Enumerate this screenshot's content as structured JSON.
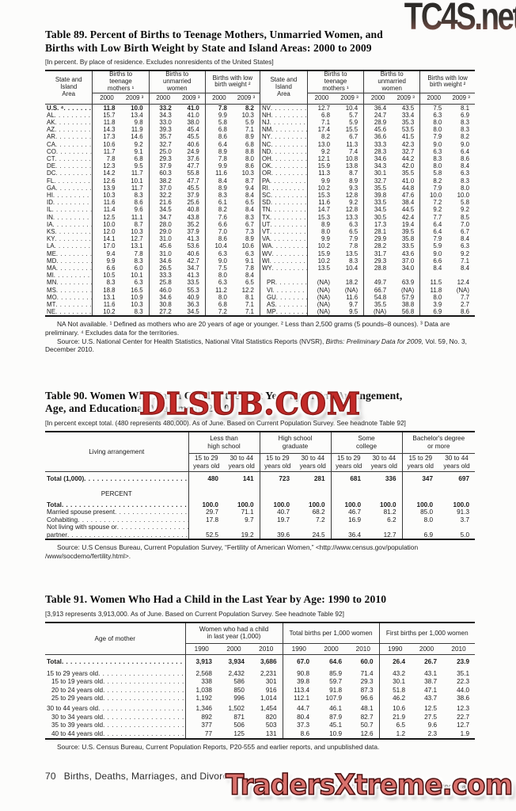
{
  "watermarks": {
    "top": "TC4S.net",
    "middle": "DLSUB.COM",
    "bottom": "TradersXtreme.com",
    "middle_color": "#c32a28",
    "bottom_color": "#d9716c"
  },
  "table89": {
    "title": "Table 89. Percent of Births to Teenage Mothers, Unmarried Women, and\nBirths with Low Birth Weight by State and Island Areas: 2000 to 2009",
    "headnote": "[In percent. By place of residence. Excludes nonresidents of the United States]",
    "header": {
      "stub": "State and\nIsland\nArea",
      "groups": [
        "Births to\nteenage\nmothers ¹",
        "Births to\nunmarried\nwomen",
        "Births with low\nbirth weight ²"
      ],
      "year1": "2000",
      "year2": "2009 ³"
    },
    "left_rows": [
      {
        "area": "U.S. ⁴",
        "bold": true,
        "values": [
          "11.8",
          "10.0",
          "33.2",
          "41.0",
          "7.8",
          "8.2"
        ]
      },
      {
        "area": "AL",
        "values": [
          "15.7",
          "13.4",
          "34.3",
          "41.0",
          "9.9",
          "10.3"
        ]
      },
      {
        "area": "AK",
        "values": [
          "11.8",
          "9.8",
          "33.0",
          "38.0",
          "5.8",
          "5.9"
        ]
      },
      {
        "area": "AZ",
        "values": [
          "14.3",
          "11.9",
          "39.3",
          "45.4",
          "6.8",
          "7.1"
        ]
      },
      {
        "area": "AR",
        "values": [
          "17.3",
          "14.6",
          "35.7",
          "45.5",
          "8.6",
          "8.9"
        ]
      },
      {
        "area": "CA",
        "values": [
          "10.6",
          "9.2",
          "32.7",
          "40.6",
          "6.4",
          "6.8"
        ]
      },
      {
        "area": "CO",
        "values": [
          "11.7",
          "9.1",
          "25.0",
          "24.9",
          "8.9",
          "8.8"
        ]
      },
      {
        "area": "CT",
        "values": [
          "7.8",
          "6.8",
          "29.3",
          "37.6",
          "7.8",
          "8.0"
        ]
      },
      {
        "area": "DE",
        "values": [
          "12.3",
          "9.5",
          "37.9",
          "47.7",
          "9.9",
          "8.6"
        ]
      },
      {
        "area": "DC",
        "values": [
          "14.2",
          "11.7",
          "60.3",
          "55.8",
          "11.6",
          "10.3"
        ]
      },
      {
        "area": "FL",
        "values": [
          "12.6",
          "10.1",
          "38.2",
          "47.7",
          "8.4",
          "8.7"
        ]
      },
      {
        "area": "GA",
        "values": [
          "13.9",
          "11.7",
          "37.0",
          "45.5",
          "8.9",
          "9.4"
        ]
      },
      {
        "area": "HI",
        "values": [
          "10.3",
          "8.3",
          "32.2",
          "37.9",
          "8.3",
          "8.4"
        ]
      },
      {
        "area": "ID",
        "values": [
          "11.6",
          "8.6",
          "21.6",
          "25.6",
          "6.1",
          "6.5"
        ]
      },
      {
        "area": "IL",
        "values": [
          "11.4",
          "9.6",
          "34.5",
          "40.8",
          "8.2",
          "8.4"
        ]
      },
      {
        "area": "IN",
        "values": [
          "12.5",
          "11.1",
          "34.7",
          "43.8",
          "7.6",
          "8.3"
        ]
      },
      {
        "area": "IA",
        "values": [
          "10.0",
          "8.7",
          "28.0",
          "35.2",
          "6.6",
          "6.7"
        ]
      },
      {
        "area": "KS",
        "values": [
          "12.0",
          "10.3",
          "29.0",
          "37.9",
          "7.0",
          "7.3"
        ]
      },
      {
        "area": "KY",
        "values": [
          "14.1",
          "12.7",
          "31.0",
          "41.3",
          "8.6",
          "8.9"
        ]
      },
      {
        "area": "LA",
        "values": [
          "17.0",
          "13.1",
          "45.6",
          "53.6",
          "10.4",
          "10.6"
        ]
      },
      {
        "area": "ME",
        "values": [
          "9.4",
          "7.8",
          "31.0",
          "40.6",
          "6.3",
          "6.3"
        ]
      },
      {
        "area": "MD",
        "values": [
          "9.9",
          "8.3",
          "34.6",
          "42.7",
          "9.0",
          "9.1"
        ]
      },
      {
        "area": "MA",
        "values": [
          "6.6",
          "6.0",
          "26.5",
          "34.7",
          "7.5",
          "7.8"
        ]
      },
      {
        "area": "MI",
        "values": [
          "10.5",
          "10.1",
          "33.3",
          "41.3",
          "8.0",
          "8.4"
        ]
      },
      {
        "area": "MN",
        "values": [
          "8.3",
          "6.3",
          "25.8",
          "33.5",
          "6.3",
          "6.5"
        ]
      },
      {
        "area": "MS",
        "values": [
          "18.8",
          "16.5",
          "46.0",
          "55.3",
          "11.2",
          "12.2"
        ]
      },
      {
        "area": "MO",
        "values": [
          "13.1",
          "10.9",
          "34.6",
          "40.9",
          "8.0",
          "8.1"
        ]
      },
      {
        "area": "MT",
        "values": [
          "11.6",
          "10.3",
          "30.8",
          "36.3",
          "6.8",
          "7.1"
        ]
      },
      {
        "area": "NE",
        "values": [
          "10.2",
          "8.3",
          "27.2",
          "34.5",
          "7.2",
          "7.1"
        ]
      }
    ],
    "right_rows": [
      {
        "area": "NV",
        "values": [
          "12.7",
          "10.4",
          "36.4",
          "43.5",
          "7.5",
          "8.1"
        ]
      },
      {
        "area": "NH",
        "values": [
          "6.8",
          "5.7",
          "24.7",
          "33.4",
          "6.3",
          "6.9"
        ]
      },
      {
        "area": "NJ",
        "values": [
          "7.1",
          "5.9",
          "28.9",
          "35.3",
          "8.0",
          "8.3"
        ]
      },
      {
        "area": "NM",
        "values": [
          "17.4",
          "15.5",
          "45.6",
          "53.5",
          "8.0",
          "8.3"
        ]
      },
      {
        "area": "NY",
        "values": [
          "8.2",
          "6.7",
          "36.6",
          "41.5",
          "7.9",
          "8.2"
        ]
      },
      {
        "area": "NC",
        "values": [
          "13.0",
          "11.3",
          "33.3",
          "42.3",
          "9.0",
          "9.0"
        ]
      },
      {
        "area": "ND",
        "values": [
          "9.2",
          "7.4",
          "28.3",
          "32.7",
          "6.3",
          "6.4"
        ]
      },
      {
        "area": "OH",
        "values": [
          "12.1",
          "10.8",
          "34.6",
          "44.2",
          "8.3",
          "8.6"
        ]
      },
      {
        "area": "OK",
        "values": [
          "15.9",
          "13.8",
          "34.3",
          "42.0",
          "8.0",
          "8.4"
        ]
      },
      {
        "area": "OR",
        "values": [
          "11.3",
          "8.7",
          "30.1",
          "35.5",
          "5.8",
          "6.3"
        ]
      },
      {
        "area": "PA",
        "values": [
          "9.9",
          "8.9",
          "32.7",
          "41.0",
          "8.2",
          "8.3"
        ]
      },
      {
        "area": "RI",
        "values": [
          "10.2",
          "9.3",
          "35.5",
          "44.8",
          "7.9",
          "8.0"
        ]
      },
      {
        "area": "SC",
        "values": [
          "15.3",
          "12.8",
          "39.8",
          "47.6",
          "10.0",
          "10.0"
        ]
      },
      {
        "area": "SD",
        "values": [
          "11.6",
          "9.2",
          "33.5",
          "38.4",
          "7.2",
          "5.8"
        ]
      },
      {
        "area": "TN",
        "values": [
          "14.7",
          "12.8",
          "34.5",
          "44.5",
          "9.2",
          "9.2"
        ]
      },
      {
        "area": "TX",
        "values": [
          "15.3",
          "13.3",
          "30.5",
          "42.4",
          "7.7",
          "8.5"
        ]
      },
      {
        "area": "UT",
        "values": [
          "8.9",
          "6.3",
          "17.3",
          "19.4",
          "6.4",
          "7.0"
        ]
      },
      {
        "area": "VT",
        "values": [
          "8.0",
          "6.5",
          "28.1",
          "39.5",
          "6.4",
          "6.7"
        ]
      },
      {
        "area": "VA",
        "values": [
          "9.9",
          "7.9",
          "29.9",
          "35.8",
          "7.9",
          "8.4"
        ]
      },
      {
        "area": "WA",
        "values": [
          "10.2",
          "7.8",
          "28.2",
          "33.5",
          "5.9",
          "6.3"
        ]
      },
      {
        "area": "WV",
        "values": [
          "15.9",
          "13.5",
          "31.7",
          "43.6",
          "9.0",
          "9.2"
        ]
      },
      {
        "area": "WI",
        "values": [
          "10.2",
          "8.3",
          "29.3",
          "37.0",
          "6.6",
          "7.1"
        ]
      },
      {
        "area": "WY",
        "values": [
          "13.5",
          "10.4",
          "28.8",
          "34.0",
          "8.4",
          "8.4"
        ]
      },
      null,
      {
        "area": "PR",
        "indent": true,
        "values": [
          "(NA)",
          "18.2",
          "49.7",
          "63.9",
          "11.5",
          "12.4"
        ]
      },
      {
        "area": "VI",
        "indent": true,
        "values": [
          "(NA)",
          "(NA)",
          "66.7",
          "(NA)",
          "11.8",
          "(NA)"
        ]
      },
      {
        "area": "GU",
        "indent": true,
        "values": [
          "(NA)",
          "11.6",
          "54.8",
          "57.9",
          "8.0",
          "7.7"
        ]
      },
      {
        "area": "AS",
        "indent": true,
        "values": [
          "(NA)",
          "9.7",
          "35.5",
          "38.8",
          "3.9",
          "2.7"
        ]
      },
      {
        "area": "MP",
        "indent": true,
        "values": [
          "(NA)",
          "9.5",
          "(NA)",
          "56.8",
          "6.9",
          "8.6"
        ]
      }
    ],
    "footnote": "NA Not available. ¹ Defined as mothers who are 20 years of age or younger. ² Less than 2,500 grams (5 pounds–8 ounces). ³ Data are preliminary. ⁴ Excludes data for the territories.",
    "source_prefix": "Source: U.S. National Center for Health Statistics, National Vital Statistics Reports (NVSR), ",
    "source_italic": "Births: Preliminary Data for 2009,",
    "source_suffix": " Vol. 59, No. 3, December 2010."
  },
  "table90": {
    "title": "Table 90. Women Who Had a Child in the Last Year by Living Arrangement,\nAge, and Educational Attainment: 2010",
    "headnote": "[In percent except total. (480 represents 480,000). As of June. Based on Current Population Survey. See headnote Table 92]",
    "header": {
      "stub": "Living arrangement",
      "groups": [
        "Less than\nhigh school",
        "High school\ngraduate",
        "Some\ncollege",
        "Bachelor's degree\nor more"
      ],
      "sub1": "15 to 29\nyears old",
      "sub2": "30 to 44\nyears old"
    },
    "rows": [
      {
        "label": "Total (1,000)",
        "bold": true,
        "first": true,
        "values": [
          "480",
          "141",
          "723",
          "281",
          "681",
          "336",
          "347",
          "697"
        ]
      },
      {
        "type": "spacer"
      },
      {
        "type": "section",
        "label": "PERCENT"
      },
      {
        "type": "spacer2"
      },
      {
        "label": "Total",
        "bold": true,
        "values": [
          "100.0",
          "100.0",
          "100.0",
          "100.0",
          "100.0",
          "100.0",
          "100.0",
          "100.0"
        ]
      },
      {
        "label": "Married spouse present",
        "values": [
          "29.7",
          "71.1",
          "40.7",
          "68.2",
          "46.7",
          "81.2",
          "85.0",
          "91.3"
        ]
      },
      {
        "label": "Cohabiting",
        "values": [
          "17.8",
          "9.7",
          "19.7",
          "7.2",
          "16.9",
          "6.2",
          "8.0",
          "3.7"
        ]
      },
      {
        "label": "Not living with spouse or",
        "label2": "partner",
        "values": [
          "52.5",
          "19.2",
          "39.6",
          "24.5",
          "36.4",
          "12.7",
          "6.9",
          "5.0"
        ]
      }
    ],
    "source": "Source: U.S Census Bureau, Current Population Survey, “Fertility of American Women,” <http://www.census.gov/population /www/socdemo/fertility.html>."
  },
  "table91": {
    "title": "Table 91. Women Who Had a Child in the Last Year by Age: 1990 to 2010",
    "headnote": "[3,913 represents 3,913,000. As of June. Based on Current Population Survey. See headnote Table 92]",
    "header": {
      "stub": "Age of mother",
      "groups": [
        "Women who had a child\nin last year (1,000)",
        "Total births per 1,000 women",
        "First births per 1,000 women"
      ],
      "years": [
        "1990",
        "2000",
        "2010"
      ]
    },
    "rows": [
      {
        "label": "Total",
        "bold": true,
        "first": true,
        "values": [
          "3,913",
          "3,934",
          "3,686",
          "67.0",
          "64.6",
          "60.0",
          "26.4",
          "26.7",
          "23.9"
        ]
      },
      {
        "type": "gap"
      },
      {
        "label": "15 to 29 years old",
        "values": [
          "2,568",
          "2,432",
          "2,231",
          "90.8",
          "85.9",
          "71.4",
          "43.2",
          "43.1",
          "35.1"
        ]
      },
      {
        "label": "15 to 19 years old",
        "indent": true,
        "values": [
          "338",
          "586",
          "301",
          "39.8",
          "59.7",
          "29.3",
          "30.1",
          "38.7",
          "22.3"
        ]
      },
      {
        "label": "20 to 24 years old",
        "indent": true,
        "values": [
          "1,038",
          "850",
          "916",
          "113.4",
          "91.8",
          "87.3",
          "51.8",
          "47.1",
          "44.0"
        ]
      },
      {
        "label": "25 to 29 years old",
        "indent": true,
        "values": [
          "1,192",
          "996",
          "1,014",
          "112.1",
          "107.9",
          "96.6",
          "46.2",
          "43.7",
          "38.6"
        ]
      },
      {
        "type": "gap"
      },
      {
        "label": "30 to 44 years old",
        "values": [
          "1,346",
          "1,502",
          "1,454",
          "44.7",
          "46.1",
          "48.1",
          "10.6",
          "12.5",
          "12.3"
        ]
      },
      {
        "label": "30 to 34 years old",
        "indent": true,
        "values": [
          "892",
          "871",
          "820",
          "80.4",
          "87.9",
          "82.7",
          "21.9",
          "27.5",
          "22.7"
        ]
      },
      {
        "label": "35 to 39 years old",
        "indent": true,
        "values": [
          "377",
          "506",
          "503",
          "37.3",
          "45.1",
          "50.7",
          "6.5",
          "9.6",
          "12.7"
        ]
      },
      {
        "label": "40 to 44 years old",
        "indent": true,
        "values": [
          "77",
          "125",
          "131",
          "8.6",
          "10.9",
          "12.6",
          "1.2",
          "2.3",
          "1.9"
        ]
      }
    ],
    "source": "Source: U.S. Census Bureau, Current Population Reports, P20-555 and earlier reports, and unpublished data."
  },
  "footer": {
    "page_number": "70",
    "section_title": "Births, Deaths, Marriages, and Divorces",
    "source": "U.S. Census Bureau, Statistical Abstract of the United States: 2012"
  }
}
